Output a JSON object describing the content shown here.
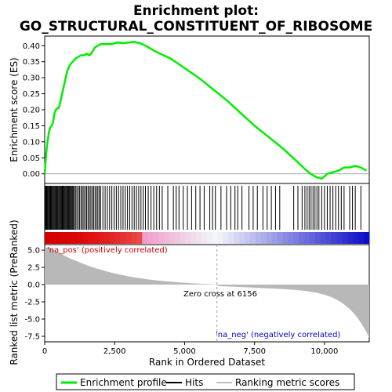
{
  "chart_data": {
    "type": "line",
    "title_line1": "Enrichment plot:",
    "title_line2": "GO_STRUCTURAL_CONSTITUENT_OF_RIBOSOME",
    "xlabel": "Rank in Ordered Dataset",
    "ylabel_top": "Enrichment score (ES)",
    "ylabel_bottom": "Ranked list metric (PreRanked)",
    "xlim": [
      0,
      11600
    ],
    "x_ticks": [
      0,
      2500,
      5000,
      7500,
      10000
    ],
    "x_tick_labels": [
      "0",
      "2,500",
      "5,000",
      "7,500",
      "10,000"
    ],
    "es_ylim": [
      -0.03,
      0.43
    ],
    "es_ticks": [
      0.0,
      0.05,
      0.1,
      0.15,
      0.2,
      0.25,
      0.3,
      0.35,
      0.4
    ],
    "es_tick_labels": [
      "0.00",
      "0.05",
      "0.10",
      "0.15",
      "0.20",
      "0.25",
      "0.30",
      "0.35",
      "0.40"
    ],
    "metric_ylim": [
      -8.3,
      5.8
    ],
    "metric_ticks": [
      5,
      2.5,
      0,
      -2.5,
      -5,
      -7.5
    ],
    "metric_tick_labels": [
      "5.0",
      "2.5",
      "0.0",
      "-2.5",
      "-5.0",
      "-7.5"
    ],
    "zero_cross_rank": 6156,
    "zero_cross_label": "Zero cross at 6156",
    "pos_label": "'na_pos' (positively correlated)",
    "neg_label": "'na_neg' (negatively correlated)",
    "enrichment_profile": {
      "x": [
        0,
        50,
        100,
        150,
        200,
        250,
        300,
        350,
        400,
        450,
        500,
        550,
        600,
        650,
        700,
        750,
        800,
        850,
        900,
        950,
        1000,
        1100,
        1200,
        1300,
        1400,
        1500,
        1600,
        1700,
        1800,
        1900,
        2000,
        2200,
        2400,
        2600,
        2800,
        3000,
        3200,
        3400,
        3600,
        3800,
        4000,
        4200,
        4500,
        5000,
        5500,
        6000,
        6500,
        7000,
        7500,
        8000,
        8500,
        9000,
        9300,
        9500,
        9700,
        9900,
        10100,
        10300,
        10500,
        10700,
        10900,
        11100,
        11300,
        11500
      ],
      "y": [
        0.0,
        0.06,
        0.1,
        0.13,
        0.145,
        0.15,
        0.16,
        0.19,
        0.2,
        0.205,
        0.205,
        0.22,
        0.24,
        0.26,
        0.28,
        0.3,
        0.32,
        0.33,
        0.34,
        0.345,
        0.35,
        0.36,
        0.365,
        0.37,
        0.37,
        0.375,
        0.37,
        0.38,
        0.395,
        0.4,
        0.405,
        0.405,
        0.405,
        0.41,
        0.408,
        0.41,
        0.412,
        0.408,
        0.4,
        0.39,
        0.38,
        0.372,
        0.36,
        0.33,
        0.3,
        0.265,
        0.23,
        0.19,
        0.15,
        0.115,
        0.08,
        0.04,
        0.015,
        0.0,
        -0.01,
        -0.015,
        0.0,
        0.005,
        0.01,
        0.02,
        0.02,
        0.025,
        0.02,
        0.01
      ]
    },
    "hits_ranks": [
      15,
      40,
      70,
      95,
      120,
      150,
      180,
      210,
      240,
      270,
      300,
      330,
      360,
      390,
      420,
      450,
      480,
      510,
      540,
      570,
      600,
      630,
      660,
      690,
      720,
      750,
      780,
      810,
      840,
      870,
      900,
      930,
      960,
      990,
      1020,
      1060,
      1100,
      1150,
      1200,
      1250,
      1300,
      1350,
      1400,
      1450,
      1500,
      1550,
      1600,
      1650,
      1700,
      1750,
      1800,
      1850,
      1900,
      1950,
      2000,
      2080,
      2160,
      2240,
      2320,
      2400,
      2480,
      2560,
      2640,
      2720,
      2800,
      2880,
      2960,
      3040,
      3120,
      3200,
      3280,
      3360,
      3440,
      3520,
      3600,
      3700,
      3800,
      3900,
      4000,
      4100,
      4200,
      4400,
      4600,
      4700,
      4800,
      4950,
      5100,
      5250,
      5400,
      5550,
      5700,
      5900,
      6000,
      6100,
      6300,
      6500,
      6650,
      6800,
      6900,
      7050,
      7300,
      7450,
      7600,
      7800,
      7950,
      8100,
      8250,
      8400,
      8900,
      9050,
      9200,
      9300,
      9380,
      9450,
      9520,
      9590,
      9660,
      9730,
      9800,
      9900,
      10000,
      10100,
      10200,
      10300,
      10400,
      10500,
      10600,
      10700,
      10900,
      11000,
      11100,
      11300
    ]
  },
  "legend": {
    "items": [
      {
        "label": "Enrichment profile",
        "color": "#00ee00"
      },
      {
        "label": "Hits",
        "color": "#000000"
      },
      {
        "label": "Ranking metric scores",
        "color": "#c0c0c0"
      }
    ]
  },
  "colors": {
    "profile": "#00ee00",
    "metric_fill": "#b8b8b8",
    "pos_text": "#cc0000",
    "neg_text": "#0000cc",
    "zero_line": "#a0a0a0"
  }
}
